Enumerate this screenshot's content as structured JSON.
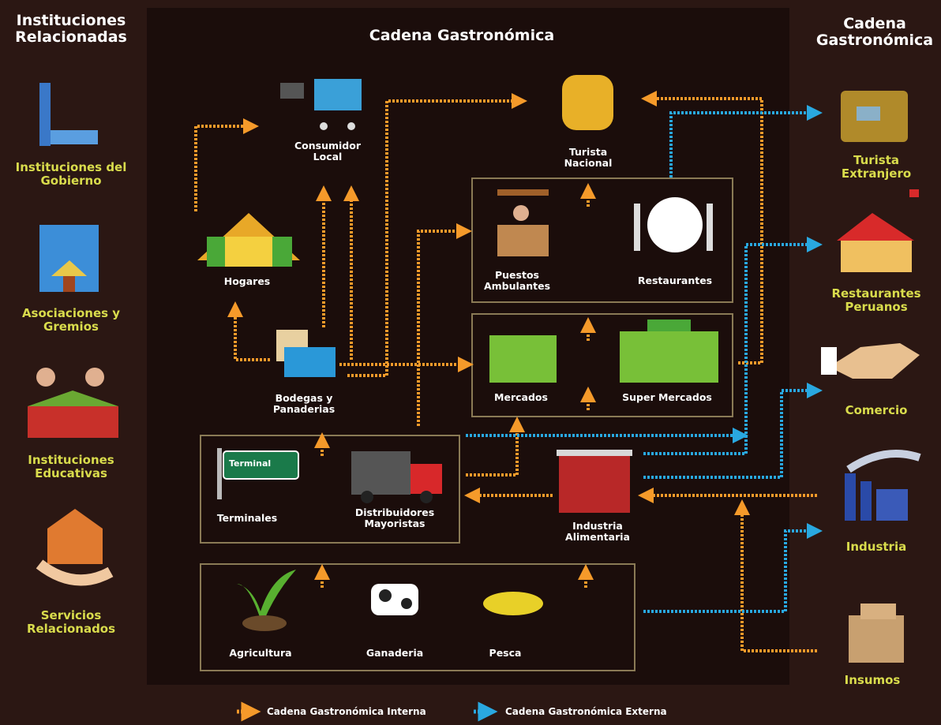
{
  "left_panel": {
    "title": "Instituciones Relacionadas",
    "items": [
      "Instituciones del Gobierno",
      "Asociaciones y Gremios",
      "Instituciones Educativas",
      "Servicios Relacionados"
    ]
  },
  "center_panel": {
    "title": "Cadena Gastronómica",
    "sign": "Terminal",
    "nodes": [
      "Consumidor Local",
      "Turista Nacional",
      "Hogares",
      "Puestos Ambulantes",
      "Restaurantes",
      "Bodegas y Panaderias",
      "Mercados",
      "Super Mercados",
      "Terminales",
      "Distribuidores Mayoristas",
      "Industria Alimentaria",
      "Agricultura",
      "Ganaderia",
      "Pesca"
    ]
  },
  "right_panel": {
    "title": "Cadena Gastronómica",
    "items": [
      "Turista Extranjero",
      "Restaurantes Peruanos",
      "Comercio",
      "Industria",
      "Insumos"
    ]
  },
  "legend": {
    "items": [
      "Cadena Gastronómica Interna",
      "Cadena Gastronómica Externa"
    ]
  }
}
